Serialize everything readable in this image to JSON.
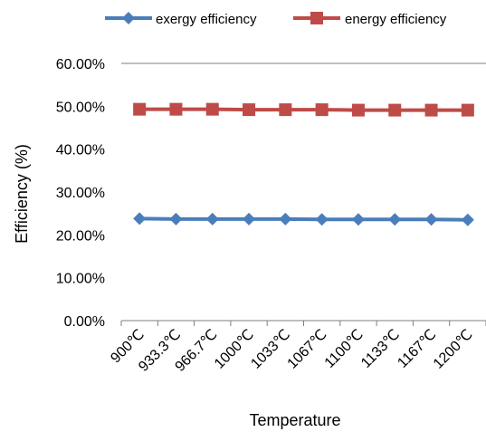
{
  "chart_data": {
    "type": "line",
    "title": "",
    "xlabel": "Temperature",
    "ylabel": "Efficiency (%)",
    "categories": [
      "900℃",
      "933.3℃",
      "966.7℃",
      "1000℃",
      "1033℃",
      "1067℃",
      "1100℃",
      "1133℃",
      "1167℃",
      "1200℃"
    ],
    "yticks": [
      "0.00%",
      "10.00%",
      "20.00%",
      "30.00%",
      "40.00%",
      "50.00%",
      "60.00%"
    ],
    "ylim": [
      0,
      0.6
    ],
    "grid": false,
    "legend_position": "top",
    "series": [
      {
        "name": "exergy efficiency",
        "color": "#4a7ebb",
        "marker": "diamond",
        "values": [
          0.238,
          0.237,
          0.237,
          0.237,
          0.237,
          0.236,
          0.236,
          0.236,
          0.236,
          0.235
        ]
      },
      {
        "name": "energy efficiency",
        "color": "#be4b48",
        "marker": "square",
        "values": [
          0.493,
          0.493,
          0.493,
          0.492,
          0.492,
          0.492,
          0.491,
          0.491,
          0.491,
          0.491
        ]
      }
    ]
  }
}
